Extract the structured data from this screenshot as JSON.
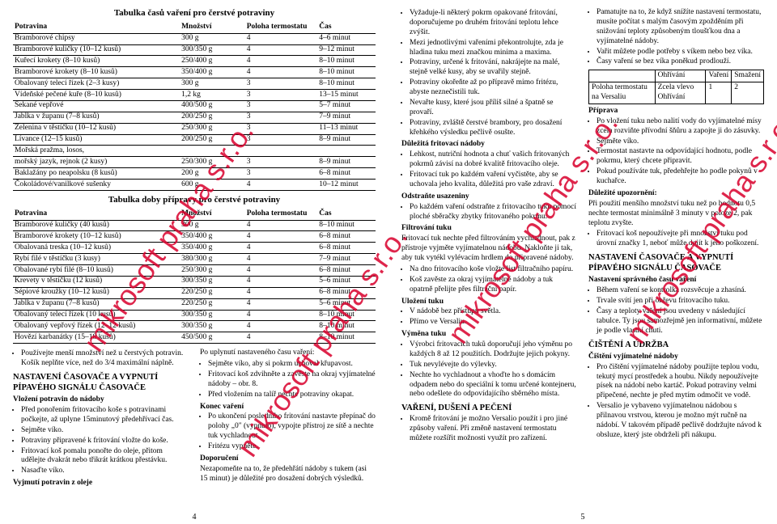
{
  "left": {
    "title1": "Tabulka časů vaření pro čerstvé potraviny",
    "headers": [
      "Potravina",
      "Množství",
      "Poloha termostatu",
      "Čas"
    ],
    "rows1": [
      [
        "Bramborové chipsy",
        "300 g",
        "4",
        "4–6 minut"
      ],
      [
        "Bramborové kuličky (10–12 kusů)",
        "300/350 g",
        "4",
        "9–12 minut"
      ],
      [
        "Kuřecí krokety (8–10 kusů)",
        "250/400 g",
        "4",
        "8–10 minut"
      ],
      [
        "Bramborové krokety (8–10 kusů)",
        "350/400 g",
        "4",
        "8–10 minut"
      ],
      [
        "Obalovaný telecí řízek (2–3 kusy)",
        "300 g",
        "3",
        "8–10 minut"
      ],
      [
        "Vídeňské pečené kuře (8–10 kusů)",
        "1,2 kg",
        "3",
        "13–15 minut"
      ],
      [
        "Sekané vepřové",
        "400/500 g",
        "3",
        "5–7 minut"
      ],
      [
        "Jablka v županu (7–8 kusů)",
        "200/250 g",
        "3",
        "7–9 minut"
      ],
      [
        "Zelenina v těstíčku (10–12 kusů)",
        "250/300 g",
        "3",
        "11–13 minut"
      ],
      [
        "Lívance (12–15 kusů)",
        "200/250 g",
        "3",
        "8–9 minut"
      ],
      [
        "Mořská pražma, losos,",
        "",
        "",
        ""
      ],
      [
        "mořský jazyk, rejnok (2 kusy)",
        "250/300 g",
        "3",
        "8–9 minut"
      ],
      [
        "Baklažány po neapolsku (8 kusů)",
        "200 g",
        "3",
        "6–8 minut"
      ],
      [
        "Čokoládové/vanilkové sušenky",
        "600 g",
        "4",
        "10–12 minut"
      ]
    ],
    "title2": "Tabulka doby přípravy pro čerstvé potraviny",
    "rows2": [
      [
        "Bramborové kuličky (40 kusů)",
        "300 g",
        "4",
        "8–10 minut"
      ],
      [
        "Bramborové krokety (10–12 kusů)",
        "350/400 g",
        "4",
        "6–8 minut"
      ],
      [
        "Obalovaná treska (10–12 kusů)",
        "350/400 g",
        "4",
        "6–8 minut"
      ],
      [
        "Rybí filé v těstíčku (3 kusy)",
        "380/300 g",
        "4",
        "7–9 minut"
      ],
      [
        "Obalované rybí filé (8–10 kusů)",
        "250/300 g",
        "4",
        "6–8 minut"
      ],
      [
        "Krevety v těstíčku (12 kusů)",
        "300/350 g",
        "4",
        "5–6 minut"
      ],
      [
        "Sépiové kroužky (10–12 kusů)",
        "220/250 g",
        "4",
        "6–8 minut"
      ],
      [
        "Jablka v županu (7–8 kusů)",
        "220/250 g",
        "4",
        "5–6 minut"
      ],
      [
        "Obalovaný telecí řízek (10 kusů)",
        "300/350 g",
        "4",
        "8–10 minut"
      ],
      [
        "Obalovaný vepřový řízek (12–12 kusů)",
        "300/350 g",
        "4",
        "8–10 minut"
      ],
      [
        "Hovězí karbanátky (15–18 kusů)",
        "450/500 g",
        "4",
        "8–10 minut"
      ]
    ],
    "col1": {
      "b1": [
        "Používejte menší množství než u čerstvých potravin. Košík neplňte více, než do 3/4 maximální náplně."
      ],
      "h1": "NASTAVENÍ ČASOVAČE A VYPNUTÍ PÍPAVÉHO SIGNÁLU ČASOVAČE",
      "h2": "Vložení potravin do nádoby",
      "b2": [
        "Před ponořením fritovacího koše s potravinami počkejte, až uplyne 15minutový předehřívací čas.",
        "Sejměte víko.",
        "Potraviny připravené k fritování vložte do koše.",
        "Fritovací koš pomalu ponořte do oleje, přitom udělejte dvakrát nebo třikrát krátkou přestávku.",
        "Nasaďte víko."
      ]
    },
    "col2": {
      "h1": "Vyjmutí potravin z oleje",
      "p1": "Po uplynutí nastaveného času vaření:",
      "b1": [
        "Sejměte víko, aby si pokrm uchoval křupavost.",
        "Fritovací koš zdvihněte a zavěste na okraj vyjímatelné nádoby – obr. 8.",
        "Před vložením na talíř nechte potraviny okapat."
      ],
      "h2": "Konec vaření",
      "b2": [
        "Po ukončení posledního fritování nastavte přepínač do polohy „0\" (vypnuto), vypojte přístroj ze sítě a nechte tuk vychladnout.",
        "Fritézu vypněte."
      ],
      "h3": "Doporučení",
      "p2": "Nezapomeňte na to, že předehřátí nádoby s tukem (asi 15 minut) je důležité pro dosažení dobrých výsledků."
    },
    "pg": "4"
  },
  "right": {
    "col1": {
      "b1": [
        "Vyžaduje-li některý pokrm opakované fritování, doporučujeme po druhém fritování teplotu lehce zvýšit.",
        "Mezi jednotlivými vařeními překontrolujte, zda je hladina tuku mezi značkou minima a maxima.",
        "Potraviny, určené k fritování, nakrájejte na malé, stejně velké kusy, aby se uvařily stejně.",
        "Potraviny okořeňte až po přípravě mimo fritézu, abyste neznečistili tuk.",
        "Nevařte kusy, které jsou příliš silné a špatně se provaří.",
        "Potraviny, zvláště čerstvé brambory, pro dosažení křehkého výsledku pečlivě osušte."
      ],
      "h1": "Důležitá fritovací nádoby",
      "b2": [
        "Lehkost, nutriční hodnota a chuť vašich fritovaných pokrmů závisí na dobré kvalitě fritovacího oleje.",
        "Fritovací tuk po každém vaření vyčistěte, aby se uchovala jeho kvalita, důležitá pro vaše zdraví."
      ],
      "h2": "Odstraňte usazeniny",
      "b3": [
        "Po každém vaření odstraňte z fritovacího tuku pomocí ploché sběračky zbytky fritovaného pokrmu."
      ],
      "h3": "Filtrování tuku",
      "p1": "Fritovací tuk nechte před filtrováním vychladnout, pak z přístroje vyjměte vyjímatelnou nádobu. Nakloňte ji tak, aby tuk vytékl vylévacím hrdlem do připravené nádoby.",
      "b4": [
        "Na dno fritovacího koše vložte list filtračního papíru.",
        "Koš zavěste za okraj vyjímatelné nádoby a tuk opatrně přelijte přes filtrační papír."
      ],
      "h4": "Uložení tuku",
      "b5": [
        "V nádobě bez přístupu světla.",
        "Přímo ve Versaliu."
      ],
      "h5": "Výměna tuku",
      "b6": [
        "Výrobci fritovacích tuků doporučují jeho výměnu po každých 8 až 12 použitích. Dodržujte jejich pokyny.",
        "Tuk nevylévejte do výlevky.",
        "Nechte ho vychladnout a vhoďte ho s domácím odpadem nebo do speciální k tomu určené kontejneru, nebo odešlete do odpovídajícího sběrného místa."
      ],
      "h6": "VAŘENÍ, DUŠENÍ A PEČENÍ",
      "b7": [
        "Kromě fritování je možno Versalio použít i pro jiné způsoby vaření. Při změně nastavení termostatu můžete rozšířit možnosti využít pro zařízení."
      ]
    },
    "col2": {
      "b1": [
        "Pamatujte na to, že když snížíte nastavení termostatu, musíte počítat s malým časovým zpožděním při snižování teploty způsobeným tloušťkou dna a vyjímatelné nádoby.",
        "Vařit můžete podle potřeby s víkem nebo bez víka.",
        "Časy vaření se bez víka poněkud prodlouží."
      ],
      "mini": {
        "r0": [
          "",
          "Ohřívání",
          "Vaření",
          "Smažení"
        ],
        "r1": [
          "Poloha termostatu na Versaliu",
          "Zcela vlevo Ohřívání",
          "1",
          "2"
        ]
      },
      "h1": "Příprava",
      "b2": [
        "Po vložení tuku nebo nalití vody do vyjímatelné mísy zcela rozviňte přívodní šňůru a zapojte ji do zásuvky.",
        "Sejměte víko.",
        "Termostat nastavte na odpovídající hodnotu, podle pokrmu, který chcete připravit.",
        "Pokud používáte tuk, předehřejte ho podle pokynů v kuchařce."
      ],
      "h2": "Důležité upozornění:",
      "p1": "Při použití menšího množství tuku než po hodnotu 0,5 nechte termostat minimálně 3 minuty v poloze 2, pak teplotu zvyšte.",
      "b3": [
        "Fritovací koš nepoužívejte při množství tuku pod úrovní značky 1, neboť může dojít k jeho poškození."
      ],
      "h3": "NASTAVENÍ ČASOVAČE A VYPNUTÍ PÍPAVÉHO SIGNÁLU ČASOVAČE",
      "h4": "Nastavení správného času vaření",
      "b4": [
        "Během vaření se kontrolka rozsvěcuje a zhasíná.",
        "Trvale svítí jen při ohřevu fritovacího tuku.",
        "Časy a teploty vaření jsou uvedeny v následující tabulce. Ty jsou samozřejmě jen informativní, můžete je podle vlastní chuti."
      ],
      "h5": "ČIŠTĚNÍ A ÚDRŽBA",
      "h6": "Čištění vyjímatelné nádoby",
      "b5": [
        "Pro čištění vyjímatelné nádoby použijte teplou vodu, tekutý mycí prostředek a houbu. Nikdy nepoužívejte písek na nádobí nebo kartáč. Pokud potraviny velmi připečené, nechte je před mytím odmočit ve vodě.",
        "Versalio je vybaveno vyjímatelnou nádobou s přilnavou vrstvou, kterou je možno mýt ručně na nádobí. V takovém případě pečlivě dodržujte návod k obsluze, který jste obdrželi při nákupu."
      ]
    },
    "pg": "5"
  },
  "wm": "mikrosoft praha s.r.o."
}
